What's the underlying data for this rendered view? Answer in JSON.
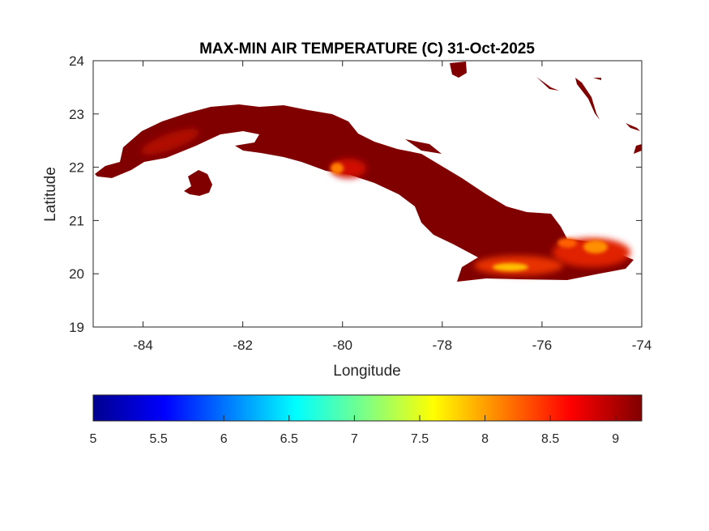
{
  "chart_data": {
    "type": "heatmap",
    "title": "MAX-MIN AIR TEMPERATURE (C) 31-Oct-2025",
    "xlabel": "Longitude",
    "ylabel": "Latitude",
    "xlim": [
      -85,
      -74
    ],
    "ylim": [
      19,
      24
    ],
    "xticks": [
      -84,
      -82,
      -80,
      -78,
      -76,
      -74
    ],
    "yticks": [
      19,
      20,
      21,
      22,
      23,
      24
    ],
    "colormap": "jet",
    "clim": [
      5,
      9.2
    ],
    "colorbar_ticks": [
      5,
      5.5,
      6,
      6.5,
      7,
      7.5,
      8,
      8.5,
      9
    ],
    "colorbar_location": "bottom",
    "grid": false,
    "dominant_value_range": [
      8.5,
      9.2
    ],
    "warmest_areas": "near 9.2 over most of Cuba",
    "coolest_areas_value": 7.5
  }
}
